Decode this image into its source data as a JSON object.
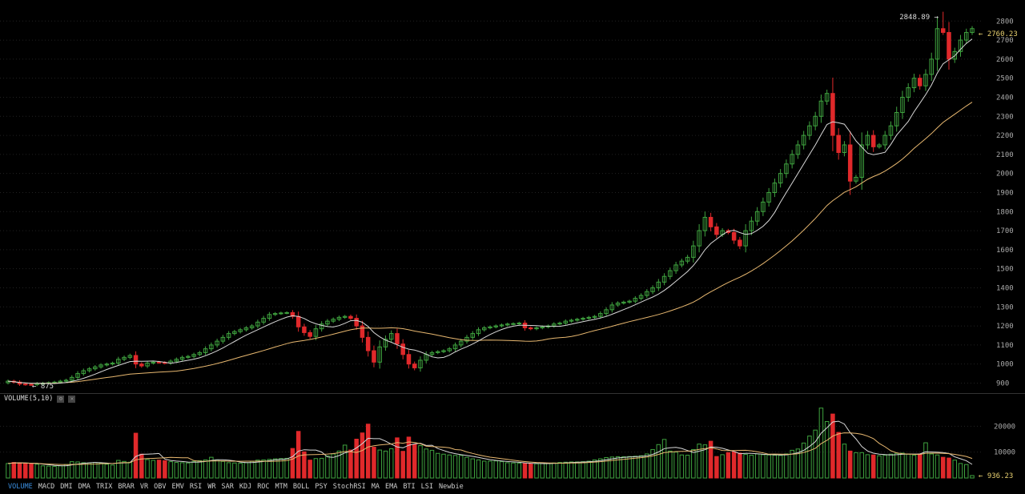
{
  "volume_panel": {
    "label": "VOLUME(5,10)",
    "settings_icon": "gear-icon",
    "close_icon": "close-icon"
  },
  "indicator_tabs": [
    "VOLUME",
    "MACD",
    "DMI",
    "DMA",
    "TRIX",
    "BRAR",
    "VR",
    "OBV",
    "EMV",
    "RSI",
    "WR",
    "SAR",
    "KDJ",
    "ROC",
    "MTM",
    "BOLL",
    "PSY",
    "StochRSI",
    "MA",
    "EMA",
    "BTI",
    "LSI",
    "Newbie"
  ],
  "active_indicator": "VOLUME",
  "colors": {
    "up": "#3fa33f",
    "down": "#e0292b",
    "ma_short": "#d8d8d8",
    "ma_long": "#e8b870",
    "grid": "#222222",
    "current_price": "#e8d070"
  },
  "chart_data": [
    {
      "type": "candlestick",
      "title": "",
      "ylim": [
        860,
        2860
      ],
      "y_ticks": [
        900,
        1000,
        1100,
        1200,
        1300,
        1400,
        1500,
        1600,
        1700,
        1800,
        1900,
        2000,
        2100,
        2200,
        2300,
        2400,
        2500,
        2600,
        2700,
        2800
      ],
      "annotations": {
        "high_label": "2848.89 →",
        "high_value": 2848.89,
        "low_label": "← 875",
        "low_value": 875,
        "last_price_label": "← 2760.23",
        "last_price": 2760.23
      },
      "closes": [
        910,
        905,
        895,
        893,
        892,
        898,
        900,
        902,
        905,
        910,
        915,
        930,
        950,
        965,
        975,
        985,
        995,
        1000,
        1005,
        1025,
        1035,
        1045,
        1000,
        990,
        1005,
        1010,
        1008,
        1005,
        1015,
        1025,
        1035,
        1040,
        1050,
        1060,
        1080,
        1100,
        1120,
        1140,
        1160,
        1170,
        1180,
        1190,
        1200,
        1220,
        1240,
        1260,
        1265,
        1268,
        1270,
        1250,
        1195,
        1165,
        1145,
        1185,
        1210,
        1225,
        1235,
        1245,
        1250,
        1240,
        1200,
        1140,
        1070,
        1010,
        1090,
        1130,
        1160,
        1105,
        1050,
        1000,
        980,
        1020,
        1050,
        1060,
        1065,
        1070,
        1080,
        1100,
        1120,
        1140,
        1160,
        1180,
        1190,
        1195,
        1200,
        1205,
        1210,
        1212,
        1215,
        1190,
        1185,
        1190,
        1195,
        1200,
        1210,
        1215,
        1225,
        1230,
        1235,
        1240,
        1245,
        1250,
        1265,
        1285,
        1310,
        1320,
        1325,
        1330,
        1345,
        1360,
        1380,
        1400,
        1430,
        1460,
        1490,
        1520,
        1540,
        1560,
        1620,
        1700,
        1770,
        1720,
        1680,
        1700,
        1690,
        1650,
        1620,
        1700,
        1750,
        1800,
        1850,
        1900,
        1950,
        2000,
        2050,
        2100,
        2150,
        2200,
        2250,
        2300,
        2380,
        2420,
        2200,
        2110,
        2150,
        1960,
        1980,
        2150,
        2200,
        2140,
        2150,
        2200,
        2250,
        2320,
        2400,
        2450,
        2500,
        2460,
        2520,
        2600,
        2760,
        2740,
        2600,
        2640,
        2700,
        2740,
        2760.23
      ],
      "volume_axis": {
        "ylim": [
          0,
          30000
        ],
        "ticks": [
          10000,
          20000
        ],
        "last_label": "← 936.23",
        "last_volume": 936.23
      },
      "volumes": [
        5600,
        6000,
        5900,
        5600,
        5400,
        5300,
        4700,
        4600,
        4500,
        4700,
        5200,
        6300,
        6200,
        5900,
        5800,
        6000,
        5700,
        5300,
        5000,
        6800,
        6400,
        6100,
        17300,
        9200,
        7100,
        6800,
        6900,
        6700,
        6300,
        6000,
        5900,
        5800,
        6400,
        6700,
        7000,
        8000,
        7000,
        6400,
        5900,
        5800,
        5700,
        5900,
        6400,
        6900,
        7000,
        7200,
        7400,
        7500,
        7600,
        11400,
        18000,
        10100,
        6900,
        7500,
        7600,
        8500,
        9300,
        10400,
        12700,
        10800,
        15000,
        17400,
        20800,
        11900,
        10800,
        10400,
        11300,
        15500,
        10300,
        15800,
        13000,
        12500,
        11200,
        10700,
        9500,
        9200,
        8900,
        8700,
        8700,
        8000,
        7400,
        7000,
        6500,
        6500,
        6600,
        6300,
        5900,
        5800,
        5700,
        5600,
        5500,
        5500,
        5600,
        5700,
        5800,
        6000,
        6100,
        6200,
        6200,
        6300,
        6500,
        7000,
        7400,
        7900,
        8100,
        8200,
        8200,
        8300,
        8400,
        8600,
        9300,
        11000,
        12900,
        14900,
        10400,
        10000,
        8900,
        8800,
        11000,
        13100,
        12800,
        14200,
        8300,
        9000,
        9800,
        10100,
        9600,
        9100,
        8800,
        9300,
        9000,
        8900,
        8800,
        8700,
        9300,
        10700,
        11200,
        13500,
        16200,
        18500,
        27000,
        21800,
        24700,
        17600,
        13100,
        10400,
        9800,
        9800,
        9000,
        8900,
        8600,
        8800,
        9200,
        9500,
        9600,
        9200,
        8800,
        9300,
        13600,
        9300,
        8900,
        8000,
        7700,
        6900,
        5600,
        5200,
        936.23
      ]
    }
  ]
}
